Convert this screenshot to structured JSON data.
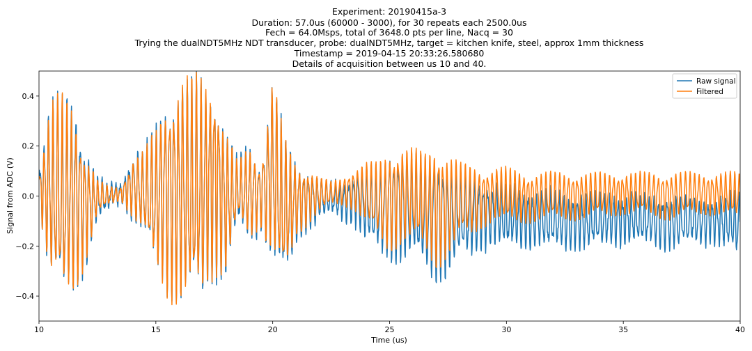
{
  "chart_data": {
    "type": "line",
    "title_lines": [
      "Experiment: 20190415a-3",
      "Duration: 57.0us (60000 - 3000), for 30 repeats each 2500.0us",
      "Fech = 64.0Msps, total of 3648.0 pts per line, Nacq = 30",
      "Trying the dualNDT5MHz NDT transducer, probe: dualNDT5MHz, target = kitchen knife, steel, approx 1mm thickness",
      "Timestamp = 2019-04-15 20:33:26.580680",
      "Details of acquisition between us 10 and 40."
    ],
    "xlabel": "Time (us)",
    "ylabel": "Signal from ADC (V)",
    "xlim": [
      10,
      40
    ],
    "ylim": [
      -0.5,
      0.5
    ],
    "xticks": [
      10,
      15,
      20,
      25,
      30,
      35,
      40
    ],
    "xtick_labels": [
      "10",
      "15",
      "20",
      "25",
      "30",
      "35",
      "40"
    ],
    "yticks": [
      -0.4,
      -0.2,
      0.0,
      0.2,
      0.4
    ],
    "ytick_labels": [
      "−0.4",
      "−0.2",
      "0.0",
      "0.2",
      "0.4"
    ],
    "grid": false,
    "legend_position": "top-right",
    "sample_rate_msps": 64,
    "series": [
      {
        "name": "Raw signal",
        "color": "#1f77b4",
        "envelope": [
          {
            "t": 10.0,
            "max": 0.12,
            "min": -0.05
          },
          {
            "t": 10.5,
            "max": 0.43,
            "min": -0.37
          },
          {
            "t": 11.0,
            "max": 0.4,
            "min": -0.46
          },
          {
            "t": 11.5,
            "max": 0.45,
            "min": -0.4
          },
          {
            "t": 12.0,
            "max": 0.22,
            "min": -0.3
          },
          {
            "t": 12.5,
            "max": 0.08,
            "min": -0.1
          },
          {
            "t": 13.0,
            "max": 0.05,
            "min": -0.05
          },
          {
            "t": 13.5,
            "max": 0.05,
            "min": -0.03
          },
          {
            "t": 14.0,
            "max": 0.18,
            "min": -0.1
          },
          {
            "t": 14.5,
            "max": 0.2,
            "min": -0.18
          },
          {
            "t": 15.0,
            "max": 0.3,
            "min": -0.33
          },
          {
            "t": 15.5,
            "max": 0.45,
            "min": -0.42
          },
          {
            "t": 16.0,
            "max": 0.5,
            "min": -0.46
          },
          {
            "t": 16.5,
            "max": 0.5,
            "min": -0.48
          },
          {
            "t": 17.0,
            "max": 0.5,
            "min": -0.45
          },
          {
            "t": 17.5,
            "max": 0.5,
            "min": -0.35
          },
          {
            "t": 18.0,
            "max": 0.3,
            "min": -0.35
          },
          {
            "t": 18.5,
            "max": 0.15,
            "min": -0.12
          },
          {
            "t": 19.0,
            "max": 0.22,
            "min": -0.2
          },
          {
            "t": 19.5,
            "max": 0.15,
            "min": -0.15
          },
          {
            "t": 20.0,
            "max": 0.5,
            "min": -0.3
          },
          {
            "t": 20.5,
            "max": 0.25,
            "min": -0.4
          },
          {
            "t": 21.0,
            "max": 0.15,
            "min": -0.2
          },
          {
            "t": 21.5,
            "max": 0.12,
            "min": -0.15
          },
          {
            "t": 22.0,
            "max": 0.08,
            "min": -0.1
          },
          {
            "t": 22.5,
            "max": 0.06,
            "min": -0.08
          },
          {
            "t": 23.0,
            "max": 0.06,
            "min": -0.1
          },
          {
            "t": 23.5,
            "max": 0.1,
            "min": -0.12
          },
          {
            "t": 24.0,
            "max": 0.13,
            "min": -0.2
          },
          {
            "t": 24.5,
            "max": 0.12,
            "min": -0.24
          },
          {
            "t": 25.0,
            "max": 0.2,
            "min": -0.28
          },
          {
            "t": 25.5,
            "max": 0.2,
            "min": -0.27
          },
          {
            "t": 26.0,
            "max": 0.18,
            "min": -0.27
          },
          {
            "t": 26.5,
            "max": 0.15,
            "min": -0.32
          },
          {
            "t": 27.0,
            "max": 0.22,
            "min": -0.37
          },
          {
            "t": 27.5,
            "max": 0.15,
            "min": -0.34
          },
          {
            "t": 28.0,
            "max": 0.1,
            "min": -0.26
          },
          {
            "t": 28.5,
            "max": 0.1,
            "min": -0.26
          },
          {
            "t": 29.0,
            "max": 0.07,
            "min": -0.22
          },
          {
            "t": 29.5,
            "max": 0.06,
            "min": -0.2
          },
          {
            "t": 30.0,
            "max": 0.06,
            "min": -0.22
          },
          {
            "t": 31.0,
            "max": 0.04,
            "min": -0.22
          },
          {
            "t": 32.0,
            "max": 0.03,
            "min": -0.22
          },
          {
            "t": 33.0,
            "max": 0.02,
            "min": -0.22
          },
          {
            "t": 34.0,
            "max": 0.02,
            "min": -0.21
          },
          {
            "t": 35.0,
            "max": 0.02,
            "min": -0.2
          },
          {
            "t": 36.0,
            "max": 0.01,
            "min": -0.2
          },
          {
            "t": 37.0,
            "max": 0.01,
            "min": -0.22
          },
          {
            "t": 38.0,
            "max": 0.0,
            "min": -0.2
          },
          {
            "t": 39.0,
            "max": 0.0,
            "min": -0.2
          },
          {
            "t": 40.0,
            "max": 0.02,
            "min": -0.25
          }
        ]
      },
      {
        "name": "Filtered",
        "color": "#ff7f0e",
        "envelope": [
          {
            "t": 10.0,
            "max": 0.1,
            "min": -0.05
          },
          {
            "t": 10.5,
            "max": 0.4,
            "min": -0.36
          },
          {
            "t": 11.0,
            "max": 0.42,
            "min": -0.45
          },
          {
            "t": 11.5,
            "max": 0.4,
            "min": -0.4
          },
          {
            "t": 12.0,
            "max": 0.2,
            "min": -0.28
          },
          {
            "t": 12.5,
            "max": 0.07,
            "min": -0.08
          },
          {
            "t": 13.0,
            "max": 0.04,
            "min": -0.04
          },
          {
            "t": 13.5,
            "max": 0.04,
            "min": -0.02
          },
          {
            "t": 14.0,
            "max": 0.16,
            "min": -0.09
          },
          {
            "t": 14.5,
            "max": 0.19,
            "min": -0.17
          },
          {
            "t": 15.0,
            "max": 0.28,
            "min": -0.32
          },
          {
            "t": 15.5,
            "max": 0.45,
            "min": -0.42
          },
          {
            "t": 16.0,
            "max": 0.5,
            "min": -0.46
          },
          {
            "t": 16.5,
            "max": 0.5,
            "min": -0.48
          },
          {
            "t": 17.0,
            "max": 0.5,
            "min": -0.44
          },
          {
            "t": 17.5,
            "max": 0.5,
            "min": -0.33
          },
          {
            "t": 18.0,
            "max": 0.28,
            "min": -0.33
          },
          {
            "t": 18.5,
            "max": 0.14,
            "min": -0.1
          },
          {
            "t": 19.0,
            "max": 0.21,
            "min": -0.18
          },
          {
            "t": 19.5,
            "max": 0.14,
            "min": -0.13
          },
          {
            "t": 20.0,
            "max": 0.5,
            "min": -0.28
          },
          {
            "t": 20.5,
            "max": 0.24,
            "min": -0.38
          },
          {
            "t": 21.0,
            "max": 0.14,
            "min": -0.17
          },
          {
            "t": 21.5,
            "max": 0.12,
            "min": -0.12
          },
          {
            "t": 22.0,
            "max": 0.08,
            "min": -0.07
          },
          {
            "t": 22.5,
            "max": 0.06,
            "min": -0.04
          },
          {
            "t": 23.0,
            "max": 0.08,
            "min": -0.04
          },
          {
            "t": 23.5,
            "max": 0.12,
            "min": -0.06
          },
          {
            "t": 24.0,
            "max": 0.14,
            "min": -0.12
          },
          {
            "t": 24.5,
            "max": 0.14,
            "min": -0.18
          },
          {
            "t": 25.0,
            "max": 0.2,
            "min": -0.24
          },
          {
            "t": 25.5,
            "max": 0.22,
            "min": -0.2
          },
          {
            "t": 26.0,
            "max": 0.2,
            "min": -0.2
          },
          {
            "t": 26.5,
            "max": 0.18,
            "min": -0.24
          },
          {
            "t": 27.0,
            "max": 0.24,
            "min": -0.3
          },
          {
            "t": 27.5,
            "max": 0.18,
            "min": -0.26
          },
          {
            "t": 28.0,
            "max": 0.14,
            "min": -0.18
          },
          {
            "t": 28.5,
            "max": 0.13,
            "min": -0.17
          },
          {
            "t": 29.0,
            "max": 0.12,
            "min": -0.13
          },
          {
            "t": 29.5,
            "max": 0.12,
            "min": -0.1
          },
          {
            "t": 30.0,
            "max": 0.12,
            "min": -0.12
          },
          {
            "t": 31.0,
            "max": 0.1,
            "min": -0.11
          },
          {
            "t": 32.0,
            "max": 0.1,
            "min": -0.1
          },
          {
            "t": 33.0,
            "max": 0.1,
            "min": -0.1
          },
          {
            "t": 34.0,
            "max": 0.1,
            "min": -0.09
          },
          {
            "t": 35.0,
            "max": 0.1,
            "min": -0.08
          },
          {
            "t": 36.0,
            "max": 0.1,
            "min": -0.08
          },
          {
            "t": 37.0,
            "max": 0.1,
            "min": -0.1
          },
          {
            "t": 38.0,
            "max": 0.1,
            "min": -0.08
          },
          {
            "t": 39.0,
            "max": 0.1,
            "min": -0.08
          },
          {
            "t": 40.0,
            "max": 0.1,
            "min": -0.1
          }
        ]
      }
    ]
  }
}
